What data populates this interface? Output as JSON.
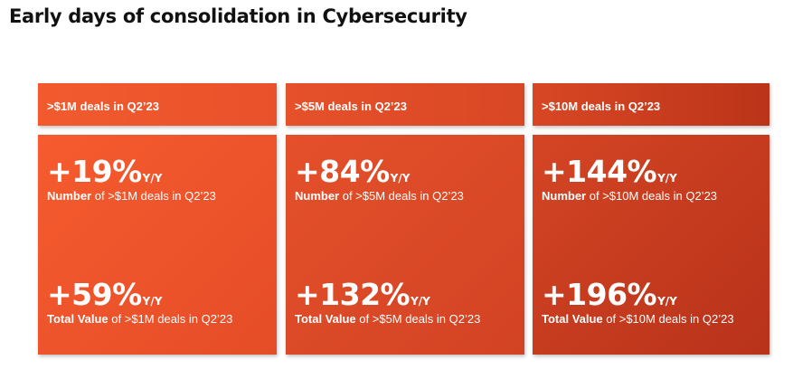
{
  "title": "Early days of consolidation in Cybersecurity",
  "colors": {
    "accent_light": "#f65b2e",
    "accent_dark": "#b8321a"
  },
  "cards": [
    {
      "header": ">$1M deals in Q2’23",
      "top": {
        "value": "+19%",
        "suffix": "Y/Y",
        "label_bold": "Number",
        "label_rest": " of >$1M deals in Q2’23"
      },
      "bottom": {
        "value": "+59%",
        "suffix": "Y/Y",
        "label_bold": "Total Value",
        "label_rest": " of >$1M deals in Q2’23"
      }
    },
    {
      "header": ">$5M deals in Q2’23",
      "top": {
        "value": "+84%",
        "suffix": "Y/Y",
        "label_bold": "Number",
        "label_rest": " of >$5M deals in Q2’23"
      },
      "bottom": {
        "value": "+132%",
        "suffix": "Y/Y",
        "label_bold": "Total Value",
        "label_rest": " of >$5M deals in Q2’23"
      }
    },
    {
      "header": ">$10M deals in Q2’23",
      "top": {
        "value": "+144%",
        "suffix": "Y/Y",
        "label_bold": "Number",
        "label_rest": " of >$10M deals in Q2’23"
      },
      "bottom": {
        "value": "+196%",
        "suffix": "Y/Y",
        "label_bold": "Total Value",
        "label_rest": " of >$10M deals in Q2’23"
      }
    }
  ]
}
